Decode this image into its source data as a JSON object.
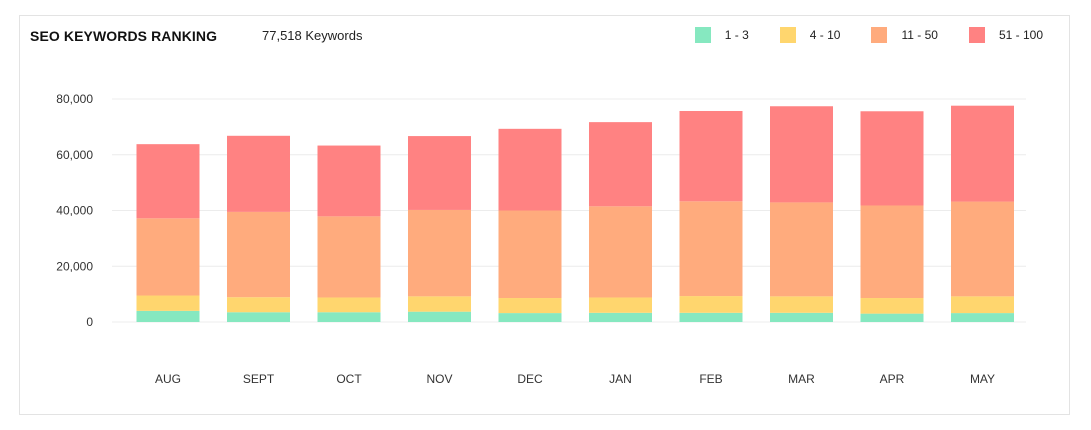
{
  "header": {
    "title": "SEO KEYWORDS RANKING",
    "count": "77,518 Keywords"
  },
  "legend": [
    {
      "label": "1 - 3",
      "color": "#86e8c0"
    },
    {
      "label": "4 - 10",
      "color": "#ffd66e"
    },
    {
      "label": "11 - 50",
      "color": "#ffab7d"
    },
    {
      "label": "51 - 100",
      "color": "#ff8282"
    }
  ],
  "chart_data": {
    "type": "bar",
    "stacked": true,
    "title": "SEO KEYWORDS RANKING",
    "categories": [
      "AUG",
      "SEPT",
      "OCT",
      "NOV",
      "DEC",
      "JAN",
      "FEB",
      "MAR",
      "APR",
      "MAY"
    ],
    "series": [
      {
        "name": "1 - 3",
        "color": "#86e8c0",
        "values": [
          4000,
          3500,
          3500,
          3700,
          3200,
          3300,
          3300,
          3300,
          3000,
          3200
        ]
      },
      {
        "name": "4 - 10",
        "color": "#ffd66e",
        "values": [
          5500,
          5400,
          5300,
          5500,
          5400,
          5500,
          6000,
          5900,
          5600,
          6000
        ]
      },
      {
        "name": "11 - 50",
        "color": "#ffab7d",
        "values": [
          27700,
          30600,
          29100,
          31000,
          31400,
          32700,
          34000,
          33700,
          33200,
          34000
        ]
      },
      {
        "name": "51 - 100",
        "color": "#ff8282",
        "values": [
          26600,
          27300,
          25400,
          26500,
          29300,
          30200,
          32400,
          34500,
          33800,
          34400
        ]
      }
    ],
    "yticks": [
      "0",
      "20,000",
      "40,000",
      "60,000",
      "80,000"
    ],
    "ylim": [
      0,
      80000
    ],
    "xlabel": "",
    "ylabel": "",
    "legend_position": "top-right",
    "grid": true
  }
}
